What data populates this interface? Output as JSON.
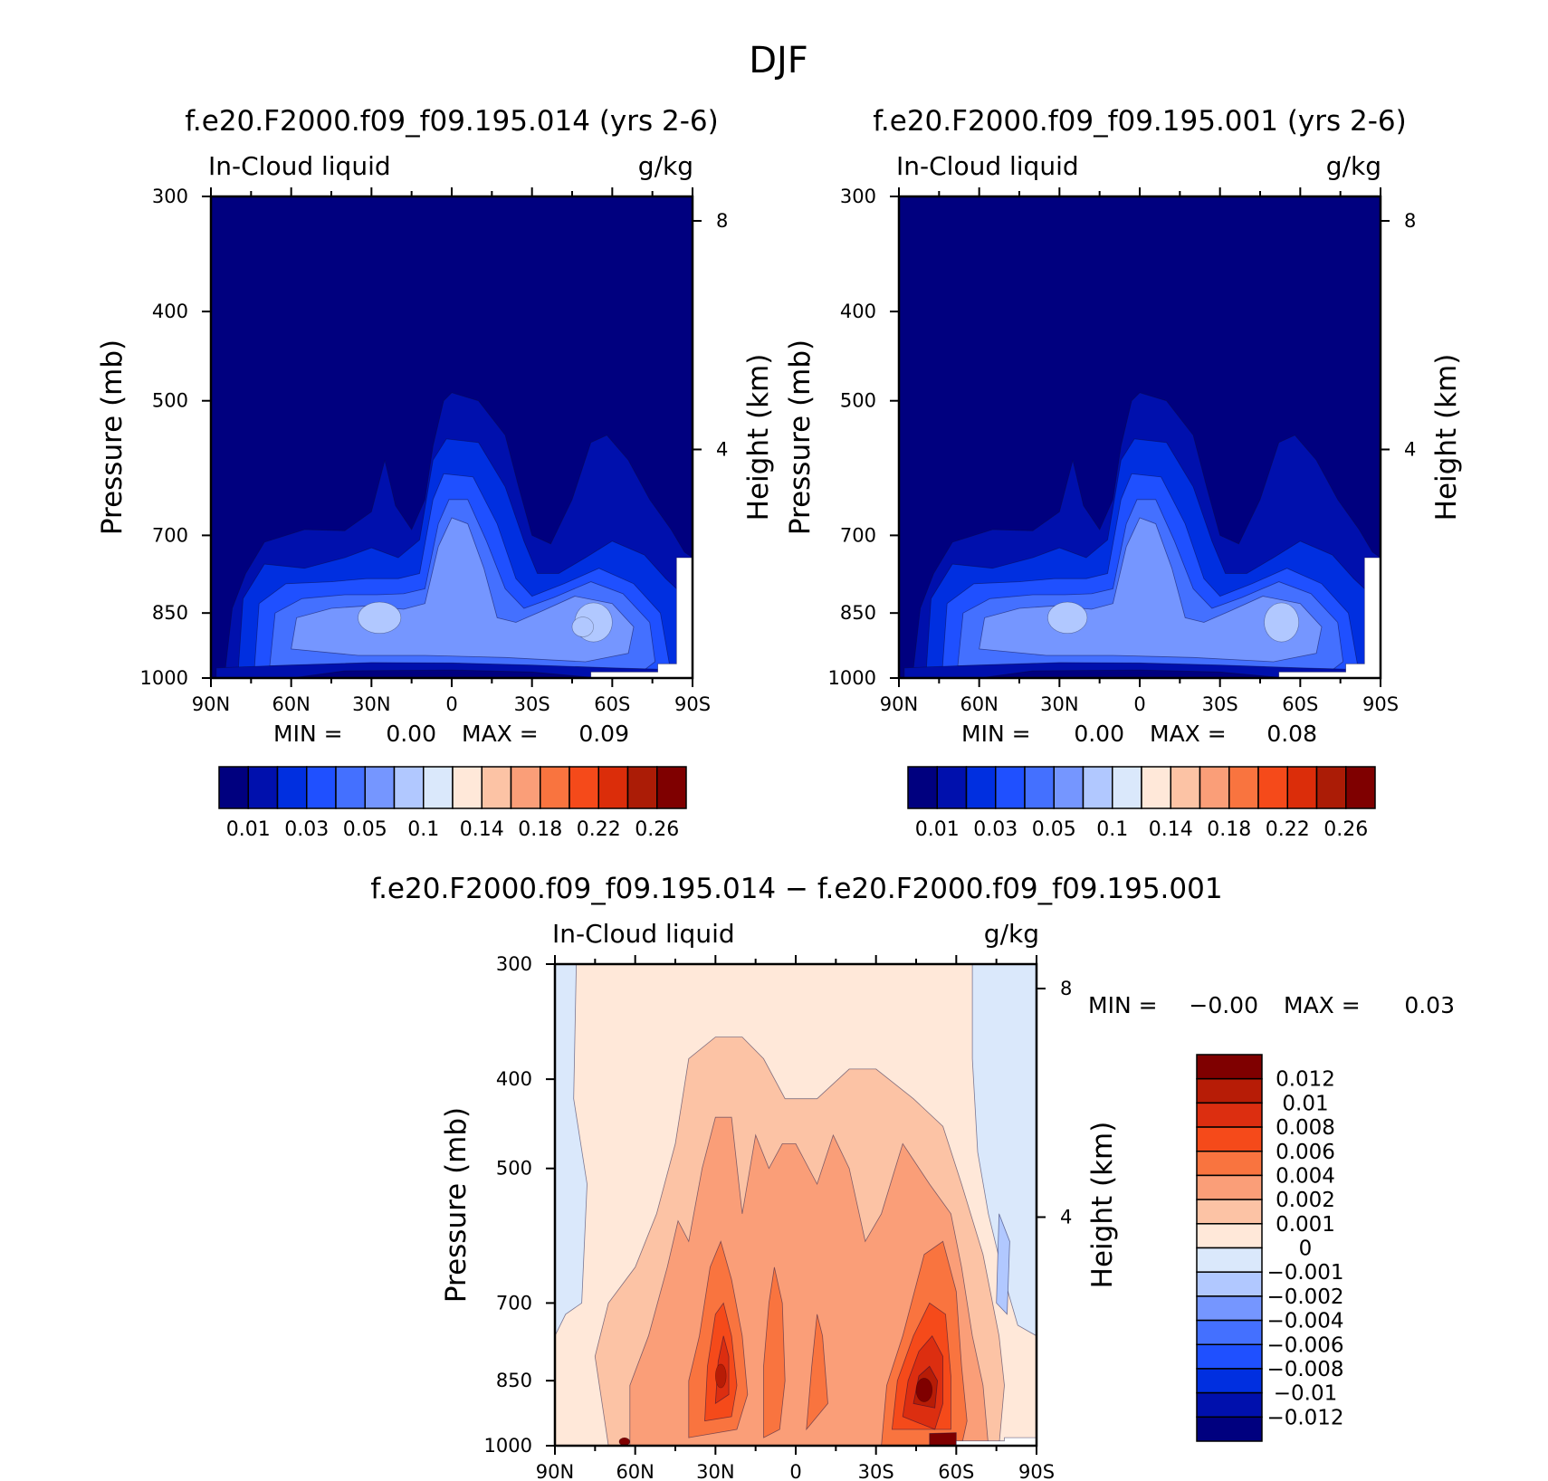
{
  "figure_title": "DJF",
  "chart_data": [
    {
      "type": "heatmap",
      "title": "f.e20.F2000.f09_f09.195.014 (yrs 2-6)",
      "left_label": "In-Cloud liquid",
      "right_label": "g/kg",
      "xlabel": "",
      "ylabel": "Pressure (mb)",
      "ylabel_right": "Height (km)",
      "x_ticks": [
        "90N",
        "60N",
        "30N",
        "0",
        "30S",
        "60S",
        "90S"
      ],
      "y_ticks": [
        "300",
        "400",
        "500",
        "700",
        "850",
        "1000"
      ],
      "y_right_ticks": [
        "8",
        "4"
      ],
      "ylim": [
        1000,
        300
      ],
      "y_scale": "log",
      "min_label": "MIN =",
      "min_value": "0.00",
      "max_label": "MAX =",
      "max_value": "0.09",
      "colorbar_ticks": [
        "0.01",
        "0.03",
        "0.05",
        "0.1",
        "0.14",
        "0.18",
        "0.22",
        "0.26"
      ],
      "colorbar_colors": [
        "#00007f",
        "#0010ad",
        "#002fe0",
        "#1f50ff",
        "#4470ff",
        "#7596ff",
        "#b1c8ff",
        "#dae8fb",
        "#ffe8d9",
        "#fcc3a5",
        "#fa9e78",
        "#f9743f",
        "#f54a1a",
        "#db2d0a",
        "#ab1c06",
        "#7f0000"
      ],
      "colorbar_position": "bottom",
      "contour_levels": [
        0.01,
        0.02,
        0.03,
        0.04,
        0.05,
        0.06,
        0.08
      ],
      "approx_max_location": {
        "lat": "45S",
        "pressure_mb": 850
      }
    },
    {
      "type": "heatmap",
      "title": "f.e20.F2000.f09_f09.195.001 (yrs 2-6)",
      "left_label": "In-Cloud liquid",
      "right_label": "g/kg",
      "xlabel": "",
      "ylabel": "Pressure (mb)",
      "ylabel_right": "Height (km)",
      "x_ticks": [
        "90N",
        "60N",
        "30N",
        "0",
        "30S",
        "60S",
        "90S"
      ],
      "y_ticks": [
        "300",
        "400",
        "500",
        "700",
        "850",
        "1000"
      ],
      "y_right_ticks": [
        "8",
        "4"
      ],
      "ylim": [
        1000,
        300
      ],
      "y_scale": "log",
      "min_label": "MIN =",
      "min_value": "0.00",
      "max_label": "MAX =",
      "max_value": "0.08",
      "colorbar_ticks": [
        "0.01",
        "0.03",
        "0.05",
        "0.1",
        "0.14",
        "0.18",
        "0.22",
        "0.26"
      ],
      "colorbar_colors": [
        "#00007f",
        "#0010ad",
        "#002fe0",
        "#1f50ff",
        "#4470ff",
        "#7596ff",
        "#b1c8ff",
        "#dae8fb",
        "#ffe8d9",
        "#fcc3a5",
        "#fa9e78",
        "#f9743f",
        "#f54a1a",
        "#db2d0a",
        "#ab1c06",
        "#7f0000"
      ],
      "colorbar_position": "bottom",
      "contour_levels": [
        0.01,
        0.02,
        0.03,
        0.04,
        0.05,
        0.06
      ],
      "approx_max_location": {
        "lat": "45S",
        "pressure_mb": 850
      }
    },
    {
      "type": "heatmap",
      "title": "f.e20.F2000.f09_f09.195.014 − f.e20.F2000.f09_f09.195.001",
      "left_label": "In-Cloud liquid",
      "right_label": "g/kg",
      "xlabel": "",
      "ylabel": "Pressure (mb)",
      "ylabel_right": "Height (km)",
      "x_ticks": [
        "90N",
        "60N",
        "30N",
        "0",
        "30S",
        "60S",
        "90S"
      ],
      "y_ticks": [
        "300",
        "400",
        "500",
        "700",
        "850",
        "1000"
      ],
      "y_right_ticks": [
        "8",
        "4"
      ],
      "ylim": [
        1000,
        300
      ],
      "y_scale": "log",
      "min_label": "MIN =",
      "min_value": "−0.00",
      "max_label": "MAX =",
      "max_value": "0.03",
      "colorbar_ticks": [
        "0.012",
        "0.01",
        "0.008",
        "0.006",
        "0.004",
        "0.002",
        "0.001",
        "0",
        "−0.001",
        "−0.002",
        "−0.004",
        "−0.006",
        "−0.008",
        "−0.01",
        "−0.012"
      ],
      "colorbar_colors": [
        "#7f0000",
        "#b71c06",
        "#dc2e10",
        "#f54a1a",
        "#f9743f",
        "#fa9e78",
        "#fcc3a5",
        "#ffe8d9",
        "#dae8fb",
        "#b1c8ff",
        "#7596ff",
        "#4470ff",
        "#1f50ff",
        "#002fe0",
        "#0010ad",
        "#00007f"
      ],
      "colorbar_position": "right",
      "approx_max_location": {
        "lat": "50S",
        "pressure_mb": 850
      }
    }
  ]
}
